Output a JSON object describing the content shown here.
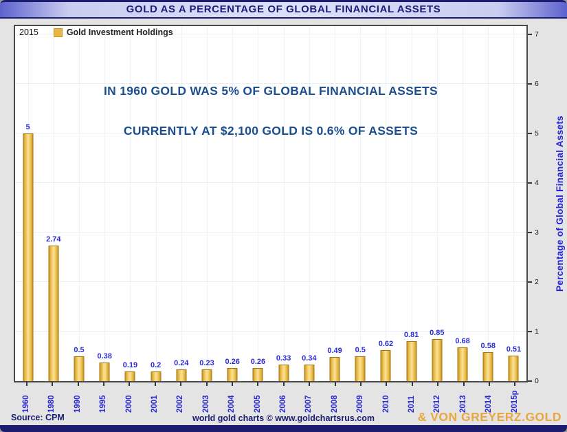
{
  "header": {
    "title": "GOLD AS A PERCENTAGE OF GLOBAL FINANCIAL ASSETS"
  },
  "legend": {
    "year": "2015",
    "series_label": "Gold Investment Holdings",
    "swatch_color": "#eab547"
  },
  "annotations": {
    "line1": "IN 1960 GOLD WAS 5% OF GLOBAL FINANCIAL ASSETS",
    "line2": "CURRENTLY AT $2,100 GOLD IS 0.6% OF ASSETS"
  },
  "chart_data": {
    "type": "bar",
    "title": "Gold as a Percentage of Global Financial Assets",
    "categories": [
      "1960",
      "1980",
      "1990",
      "1995",
      "2000",
      "2001",
      "2002",
      "2003",
      "2004",
      "2005",
      "2006",
      "2007",
      "2008",
      "2009",
      "2010",
      "2011",
      "2012",
      "2013",
      "2014",
      "2015p"
    ],
    "values": [
      5,
      2.74,
      0.5,
      0.38,
      0.19,
      0.2,
      0.24,
      0.23,
      0.26,
      0.26,
      0.33,
      0.34,
      0.49,
      0.5,
      0.62,
      0.81,
      0.85,
      0.68,
      0.58,
      0.51
    ],
    "value_labels": [
      "5",
      "2.74",
      "0.5",
      "0.38",
      "0.19",
      "0.2",
      "0.24",
      "0.23",
      "0.26",
      "0.26",
      "0.33",
      "0.34",
      "0.49",
      "0.5",
      "0.62",
      "0.81",
      "0.85",
      "0.68",
      "0.58",
      "0.51"
    ],
    "xlabel": "",
    "ylabel": "Percentage of Global Financial Assets",
    "yticks": [
      0,
      1,
      2,
      3,
      4,
      5,
      6,
      7
    ],
    "ylim": [
      0,
      7.17
    ],
    "grid": true,
    "legend_position": "top-left",
    "bar_color_center": "#fae393",
    "bar_color_edge": "#cf9a22",
    "value_label_color": "#2b2bd5"
  },
  "footer": {
    "source": "Source: CPM",
    "credit": "world gold charts © www.goldchartsrus.com",
    "brand": "& VON GREYERZ.GOLD"
  },
  "colors": {
    "navy": "#1b1b70",
    "titlebar_edge": "#5c62cc",
    "titlebar_center": "#dcdef7",
    "annotation_blue": "#1d4f8f",
    "axis_label_blue": "#2b2bd5",
    "brand_gold": "#e9a83f",
    "background_gray": "#e4e4e4"
  }
}
